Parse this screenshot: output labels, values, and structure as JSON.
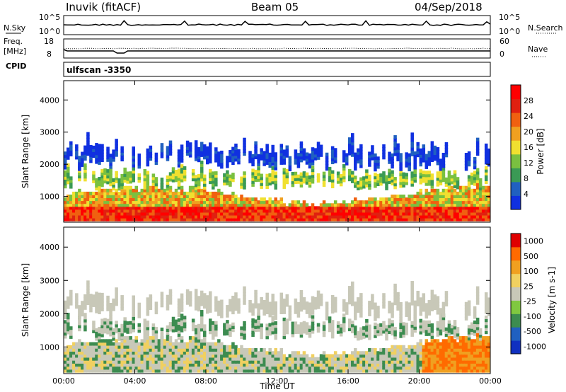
{
  "header": {
    "station": "Inuvik (fitACF)",
    "beam": "Beam 05",
    "date": "04/Sep/2018"
  },
  "noise_panel": {
    "left_label": "N.Sky",
    "right_label": "N.Search",
    "y_top": "10^5",
    "y_bottom": "10^0"
  },
  "freq_panel": {
    "left_label_1": "Freq.",
    "left_label_2": "[MHz]",
    "left_ticks": [
      "18",
      "8"
    ],
    "right_label": "Nave",
    "right_ticks": [
      "60",
      "0"
    ]
  },
  "cpid": {
    "label": "CPID",
    "value": "ulfscan -3350"
  },
  "colors": {
    "power_scale": [
      "#1030e0",
      "#2060c0",
      "#3a9a55",
      "#7ac040",
      "#f0e030",
      "#f0a020",
      "#f06010",
      "#e02010",
      "#ff0000"
    ],
    "velocity_scale": [
      "#e00000",
      "#ff6a00",
      "#f0a020",
      "#f0d060",
      "#c8c8b8",
      "#80c840",
      "#3c8c50",
      "#2060c0",
      "#1030c0"
    ]
  },
  "chart_data": [
    {
      "type": "heatmap",
      "name": "power",
      "ylabel": "Slant Range [km]",
      "xlabel": "",
      "yticks": [
        "1000",
        "2000",
        "3000",
        "4000"
      ],
      "ylim": [
        200,
        4600
      ],
      "xticks": [
        "00:00",
        "04:00",
        "08:00",
        "12:00",
        "16:00",
        "20:00",
        "00:00"
      ],
      "xlim": [
        0,
        24
      ],
      "colorbar_label": "Power [dB]",
      "colorbar_ticks": [
        "4",
        "8",
        "12",
        "16",
        "20",
        "24",
        "28"
      ],
      "colorbar_range": [
        0,
        32
      ],
      "bands": [
        {
          "start_h": 0,
          "end_h": 24,
          "low_km": 250,
          "high_km": 1100,
          "level": "high"
        },
        {
          "start_h": 0,
          "end_h": 24,
          "low_km": 1100,
          "high_km": 1500,
          "level": "mid"
        },
        {
          "start_h": 0,
          "end_h": 24,
          "low_km": 1700,
          "high_km": 2700,
          "level": "low"
        }
      ]
    },
    {
      "type": "heatmap",
      "name": "velocity",
      "ylabel": "Slant Range [km]",
      "xlabel": "Time UT",
      "yticks": [
        "1000",
        "2000",
        "3000",
        "4000"
      ],
      "ylim": [
        200,
        4600
      ],
      "xticks": [
        "00:00",
        "04:00",
        "08:00",
        "12:00",
        "16:00",
        "20:00",
        "00:00"
      ],
      "xlim": [
        0,
        24
      ],
      "colorbar_label": "Velocity [m s-1]",
      "colorbar_ticks": [
        "1000",
        "500",
        "100",
        "25",
        "-25",
        "-100",
        "-500",
        "-1000"
      ],
      "colorbar_range": [
        -1000,
        1000
      ]
    }
  ]
}
